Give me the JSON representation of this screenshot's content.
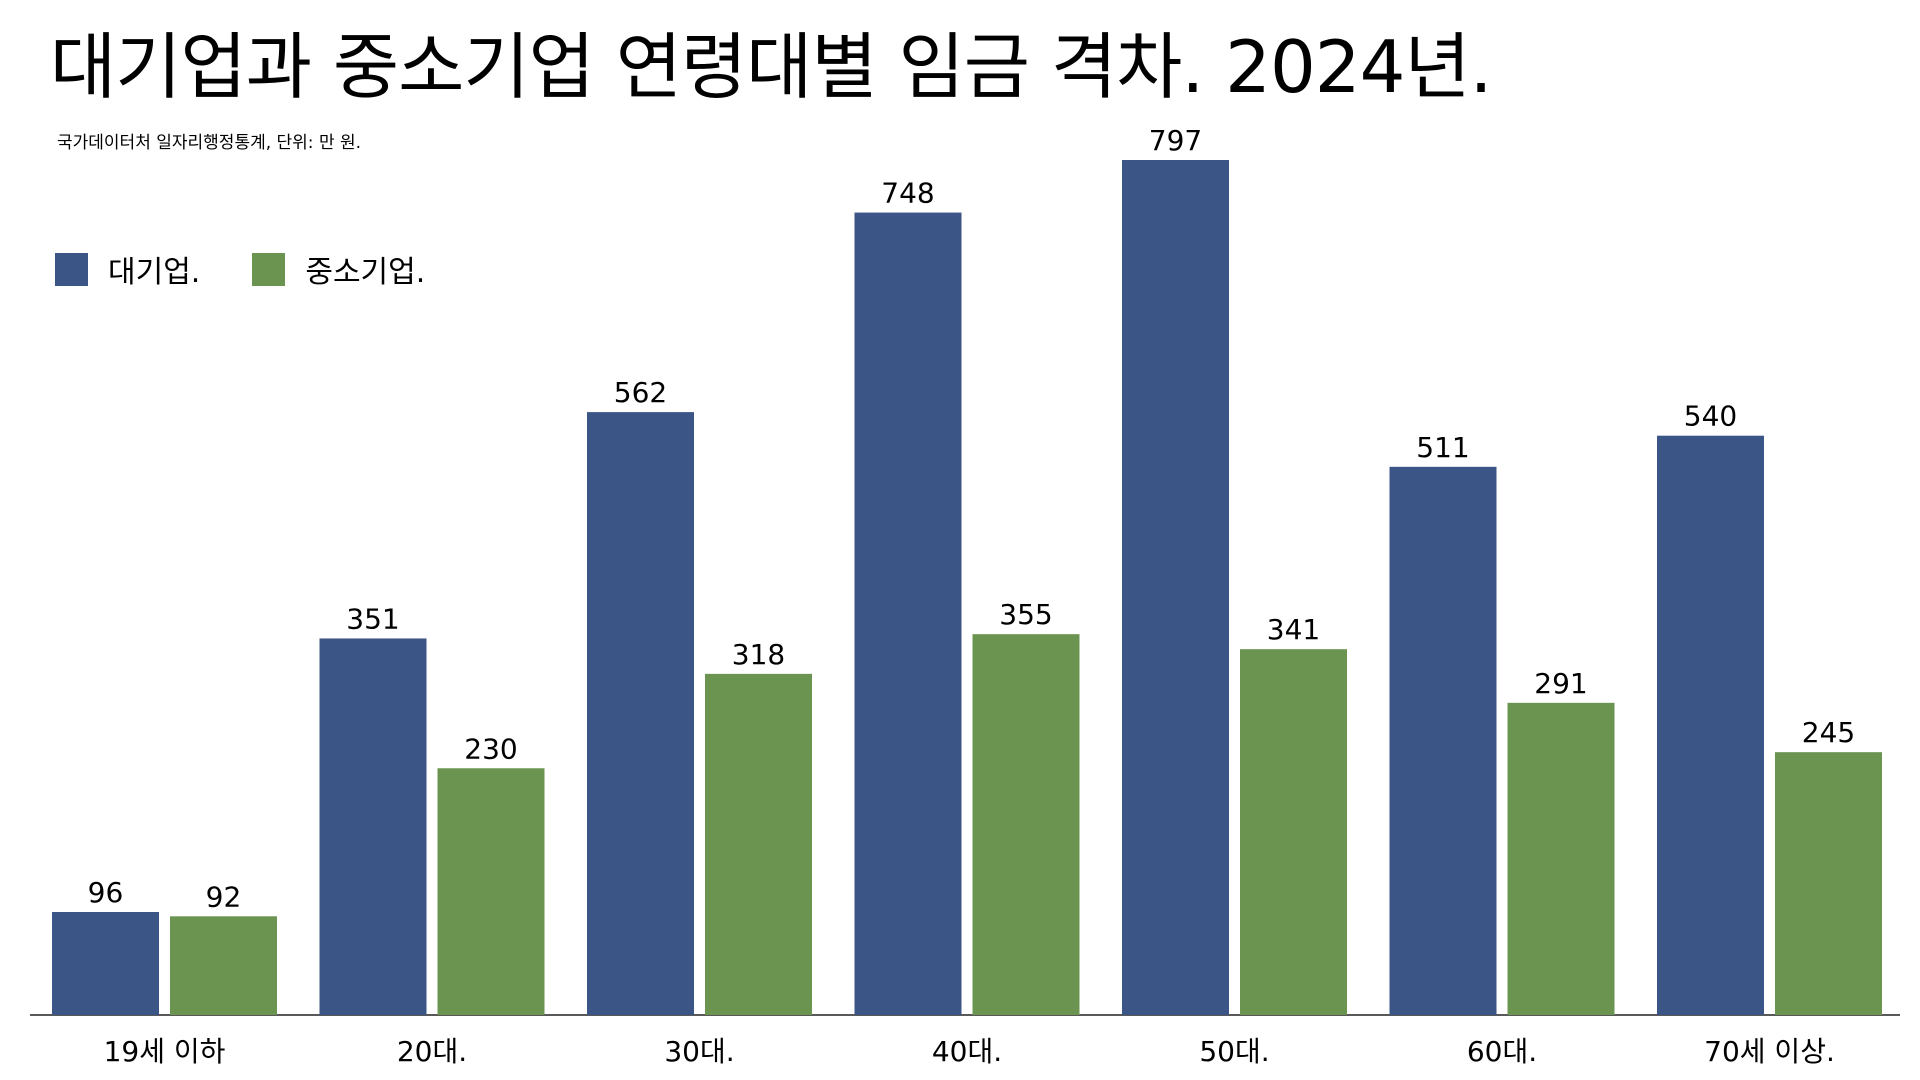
{
  "chart_data": {
    "type": "bar",
    "title": "대기업과 중소기업 연령대별 임금 격차. 2024년.",
    "subtitle": "국가데이터처 일자리행정통계, 단위: 만 원.",
    "categories": [
      "19세 이하",
      "20대.",
      "30대.",
      "40대.",
      "50대.",
      "60대.",
      "70세 이상."
    ],
    "series": [
      {
        "name": "대기업.",
        "color": "#3a5586",
        "values": [
          96,
          351,
          562,
          748,
          797,
          511,
          540
        ]
      },
      {
        "name": "중소기업.",
        "color": "#6b9450",
        "values": [
          92,
          230,
          318,
          355,
          341,
          291,
          245
        ]
      }
    ],
    "ylim": [
      0,
      797
    ],
    "legend_position": "top-left",
    "grid": false,
    "data_labels": true
  }
}
